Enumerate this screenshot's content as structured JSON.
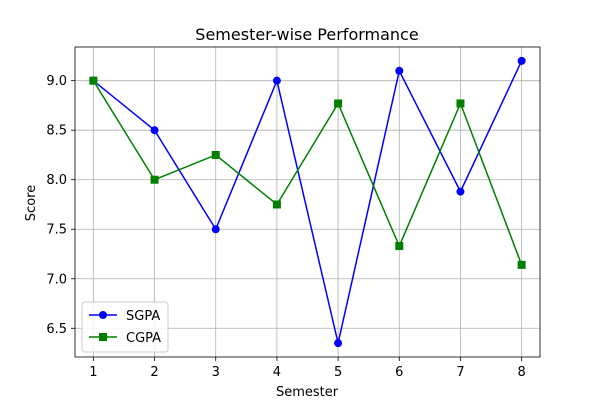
{
  "chart_data": {
    "type": "line",
    "title": "Semester-wise Performance",
    "xlabel": "Semester",
    "ylabel": "Score",
    "x": [
      1,
      2,
      3,
      4,
      5,
      6,
      7,
      8
    ],
    "xlim": [
      0.7,
      8.3
    ],
    "ylim": [
      6.21,
      9.34
    ],
    "xticks": [
      "1",
      "2",
      "3",
      "4",
      "5",
      "6",
      "7",
      "8"
    ],
    "yticks": [
      "6.5",
      "7.0",
      "7.5",
      "8.0",
      "8.5",
      "9.0"
    ],
    "grid": true,
    "legend_position": "lower-left",
    "series": [
      {
        "name": "SGPA",
        "values": [
          9.0,
          8.5,
          7.5,
          9.0,
          6.35,
          9.1,
          7.88,
          9.2
        ],
        "color": "#0000ff",
        "marker": "circle"
      },
      {
        "name": "CGPA",
        "values": [
          9.0,
          8.0,
          8.25,
          7.75,
          8.77,
          7.33,
          8.77,
          7.14
        ],
        "color": "#008000",
        "marker": "square"
      }
    ]
  }
}
